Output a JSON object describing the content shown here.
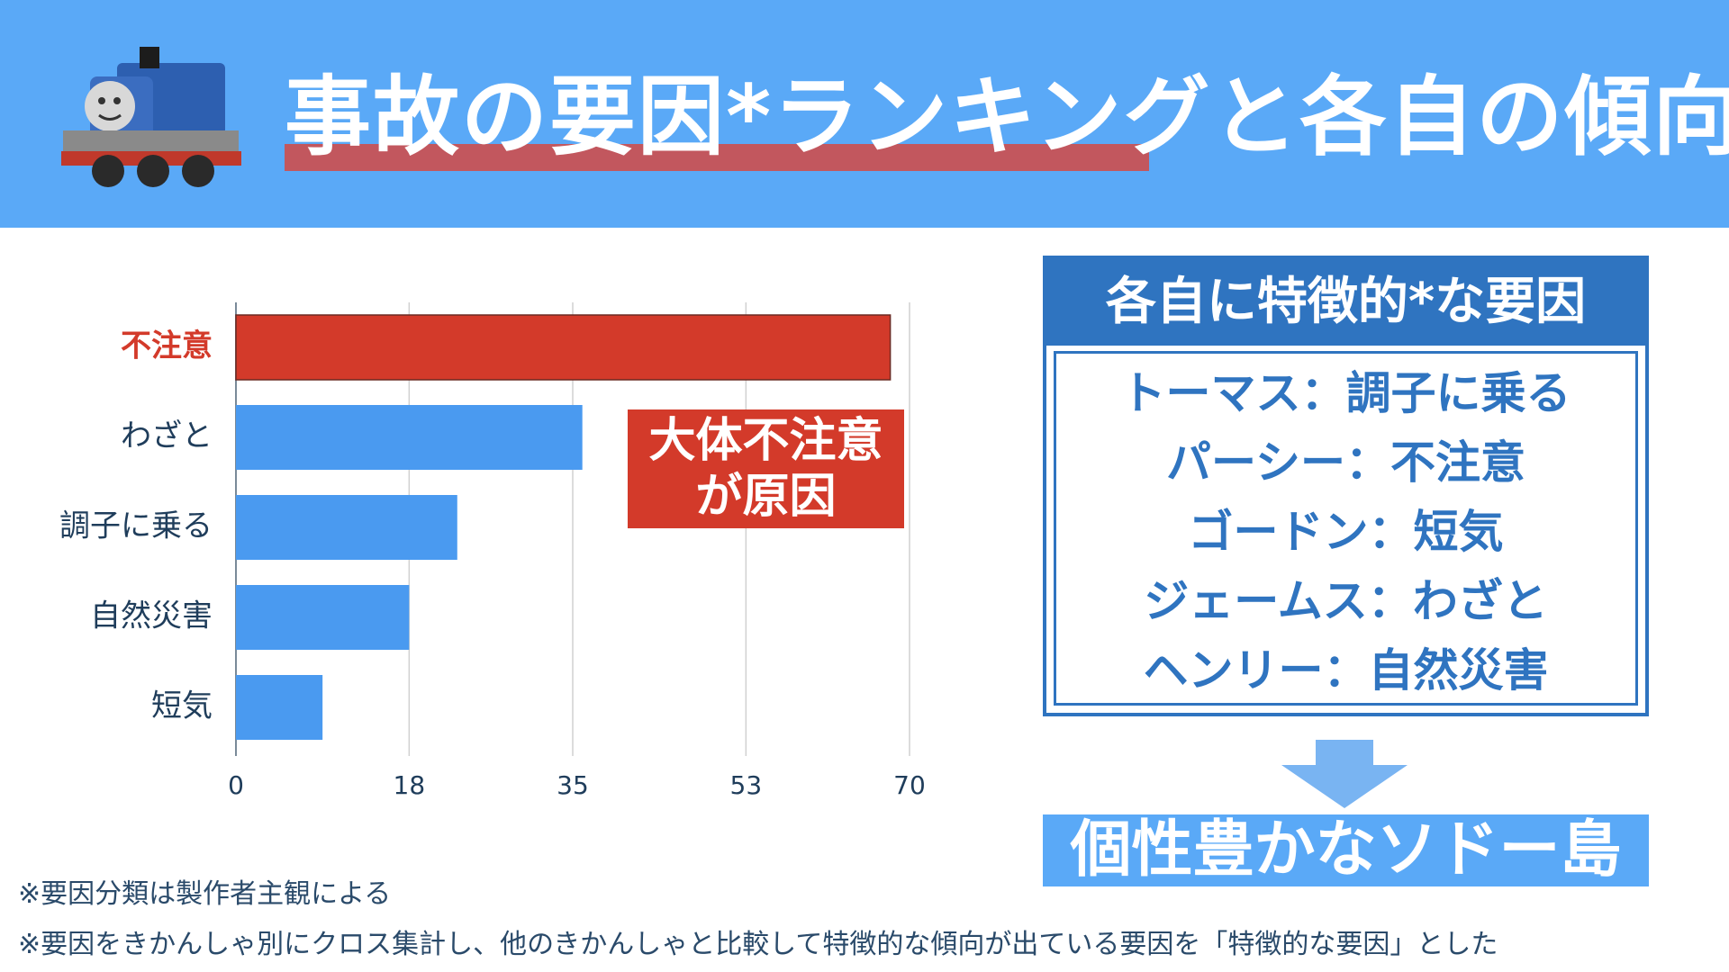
{
  "header": {
    "title": "事故の要因*ランキングと各自の傾向"
  },
  "chart_data": {
    "type": "bar",
    "orientation": "horizontal",
    "categories": [
      "不注意",
      "わざと",
      "調子に乗る",
      "自然災害",
      "短気"
    ],
    "values": [
      68,
      36,
      23,
      18,
      9
    ],
    "xlim": [
      0,
      70
    ],
    "xticks": [
      "0",
      "18",
      "35",
      "53",
      "70"
    ],
    "title": "",
    "xlabel": "",
    "ylabel": "",
    "grid": true,
    "highlight_category": "不注意",
    "colors": {
      "bar": "#4a9af0",
      "highlight": "#d33a2a",
      "label": "#1f3d5b"
    },
    "annotation": [
      "大体不注意",
      "が原因"
    ]
  },
  "factor_box": {
    "title": "各自に特徴的*な要因",
    "items": [
      "トーマス：調子に乗る",
      "パーシー：不注意",
      "ゴードン：短気",
      "ジェームス：わざと",
      "ヘンリー：自然災害"
    ]
  },
  "conclusion": "個性豊かなソドー島",
  "footnotes": [
    "※要因分類は製作者主観による",
    "※要因をきかんしゃ別にクロス集計し、他のきかんしゃと比較して特徴的な傾向が出ている要因を「特徴的な要因」とした"
  ],
  "colors": {
    "header_bg": "#5aa9f7",
    "title_underline": "#c2575e",
    "box_blue": "#2f74c0",
    "accent_red": "#d33a2a"
  }
}
